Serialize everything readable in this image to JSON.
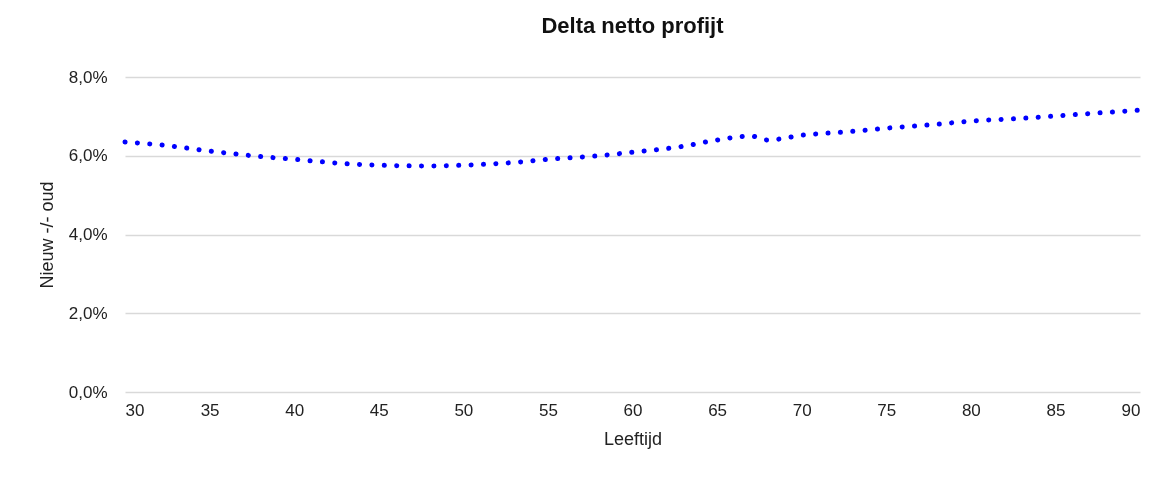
{
  "chart_data": {
    "type": "line",
    "title": "Delta netto profijt",
    "xlabel": "Leeftijd",
    "ylabel": "Nieuw -/- oud",
    "x": [
      30,
      32,
      35,
      38,
      40,
      43,
      45,
      48,
      50,
      53,
      55,
      58,
      60,
      63,
      65,
      67,
      68,
      70,
      73,
      75,
      78,
      80,
      83,
      85,
      88,
      90
    ],
    "series": [
      {
        "color": "#0000ff",
        "values": [
          6.35,
          6.28,
          6.12,
          5.98,
          5.91,
          5.8,
          5.76,
          5.74,
          5.76,
          5.83,
          5.91,
          6.0,
          6.09,
          6.24,
          6.4,
          6.5,
          6.4,
          6.52,
          6.62,
          6.7,
          6.8,
          6.88,
          6.95,
          7.01,
          7.1,
          7.16
        ]
      }
    ],
    "xlim": [
      30,
      90
    ],
    "xticks": [
      30,
      35,
      40,
      45,
      50,
      55,
      60,
      65,
      70,
      75,
      80,
      85,
      90
    ],
    "ylim": [
      0,
      8
    ],
    "yticks": [
      {
        "value": 0,
        "label": "0,0%"
      },
      {
        "value": 2,
        "label": "2,0%"
      },
      {
        "value": 4,
        "label": "4,0%"
      },
      {
        "value": 6,
        "label": "6,0%"
      },
      {
        "value": 8,
        "label": "8,0%"
      }
    ],
    "grid": "y",
    "line_style": "dotted"
  }
}
